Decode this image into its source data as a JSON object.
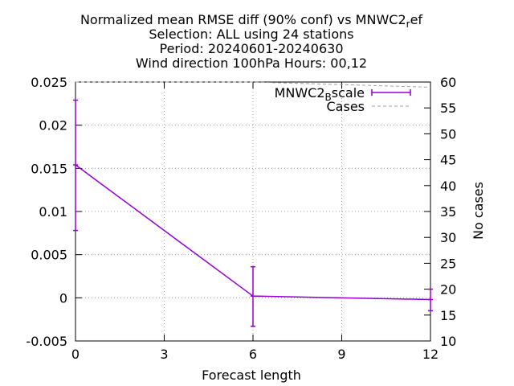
{
  "chart_data": {
    "type": "line",
    "title_lines": [
      "Normalized mean RMSE diff (90% conf) vs MNWC2_ref",
      "Selection: ALL using    24 stations",
      "Period: 20240601-20240630",
      "Wind direction 100hPa   Hours: 00,12"
    ],
    "xlabel": "Forecast length",
    "ylabel": "",
    "y2label": "No cases",
    "xlim": [
      0,
      12
    ],
    "ylim": [
      -0.005,
      0.025
    ],
    "y2lim": [
      10,
      60
    ],
    "x_ticks": [
      "0",
      "3",
      "6",
      "9",
      "12"
    ],
    "y_ticks": [
      "-0.005",
      "0",
      "0.005",
      "0.01",
      "0.015",
      "0.02",
      "0.025"
    ],
    "y2_ticks": [
      "10",
      "15",
      "20",
      "25",
      "30",
      "35",
      "40",
      "45",
      "50",
      "55",
      "60"
    ],
    "grid": true,
    "legend_position": "top-right",
    "colors": {
      "series": "#9400d3",
      "cases": "#a0a0a0"
    },
    "series": [
      {
        "name": "MNWC2_Bscale",
        "name_main": "MNWC2",
        "name_sub": "B",
        "name_rest": "scale",
        "x": [
          0,
          6,
          12
        ],
        "values": [
          0.0154,
          0.0002,
          -0.0002
        ],
        "err_low": [
          0.0078,
          -0.0033,
          -0.0015
        ],
        "err_high": [
          0.0229,
          0.0036,
          0.001
        ],
        "axis": "y1"
      },
      {
        "name": "Cases",
        "x": [
          0,
          6,
          12
        ],
        "values": [
          60,
          60,
          59
        ],
        "axis": "y2",
        "style": "dashed"
      }
    ]
  }
}
